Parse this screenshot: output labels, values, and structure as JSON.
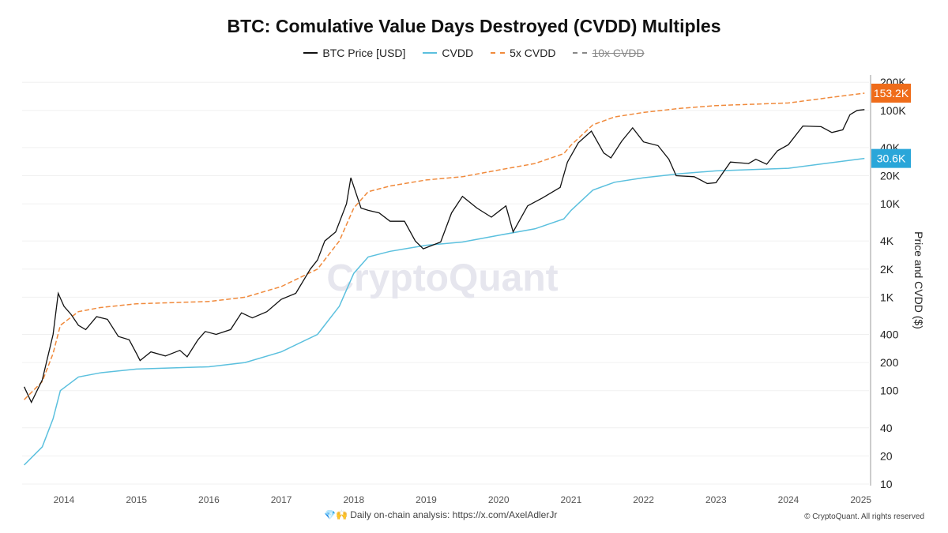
{
  "title": "BTC: Comulative Value Days Destroyed (CVDD) Multiples",
  "watermark": "CryptoQuant",
  "footer": {
    "icons": "💎🙌",
    "text": "Daily on-chain analysis: ",
    "link": "https://x.com/AxelAdlerJr",
    "copyright": "© CryptoQuant. All rights reserved"
  },
  "chart_data": {
    "type": "line",
    "title": "BTC: Comulative Value Days Destroyed (CVDD) Multiples",
    "ylabel": "Price and CVDD ($)",
    "yscale": "log",
    "ylim": [
      10,
      200000
    ],
    "y_ticks": [
      "10",
      "20",
      "40",
      "100",
      "200",
      "400",
      "1K",
      "2K",
      "4K",
      "10K",
      "20K",
      "40K",
      "100K",
      "200K"
    ],
    "y_tick_values": [
      10,
      20,
      40,
      100,
      200,
      400,
      1000,
      2000,
      4000,
      10000,
      20000,
      40000,
      100000,
      200000
    ],
    "x_ticks": [
      "2014",
      "2015",
      "2016",
      "2017",
      "2018",
      "2019",
      "2020",
      "2021",
      "2022",
      "2023",
      "2024",
      "2025"
    ],
    "legend_placement": "top",
    "grid": true,
    "series": [
      {
        "name": "BTC Price [USD]",
        "color": "#111111",
        "style": "solid",
        "x": [
          2013.45,
          2013.55,
          2013.7,
          2013.85,
          2013.92,
          2014.0,
          2014.1,
          2014.2,
          2014.3,
          2014.45,
          2014.6,
          2014.75,
          2014.9,
          2015.0,
          2015.05,
          2015.2,
          2015.4,
          2015.6,
          2015.7,
          2015.85,
          2015.95,
          2016.1,
          2016.3,
          2016.45,
          2016.6,
          2016.8,
          2017.0,
          2017.2,
          2017.4,
          2017.5,
          2017.6,
          2017.75,
          2017.9,
          2017.96,
          2018.1,
          2018.2,
          2018.35,
          2018.5,
          2018.7,
          2018.85,
          2018.96,
          2019.2,
          2019.35,
          2019.5,
          2019.7,
          2019.9,
          2020.1,
          2020.2,
          2020.4,
          2020.6,
          2020.85,
          2020.95,
          2021.1,
          2021.28,
          2021.45,
          2021.55,
          2021.7,
          2021.85,
          2022.0,
          2022.2,
          2022.35,
          2022.45,
          2022.7,
          2022.88,
          2023.0,
          2023.2,
          2023.45,
          2023.55,
          2023.7,
          2023.85,
          2024.0,
          2024.2,
          2024.45,
          2024.6,
          2024.75,
          2024.85,
          2024.95,
          2025.05
        ],
        "values": [
          110,
          75,
          130,
          400,
          1100,
          800,
          650,
          500,
          450,
          620,
          580,
          380,
          350,
          250,
          210,
          260,
          235,
          270,
          230,
          350,
          430,
          400,
          450,
          680,
          600,
          700,
          950,
          1100,
          2000,
          2500,
          4000,
          5000,
          10000,
          19000,
          9000,
          8500,
          8000,
          6500,
          6500,
          4000,
          3300,
          3900,
          8000,
          12000,
          9000,
          7200,
          9500,
          5000,
          9500,
          11500,
          15000,
          28000,
          45000,
          60000,
          35000,
          31000,
          47000,
          65000,
          46000,
          42000,
          30000,
          20000,
          19500,
          16500,
          16800,
          28000,
          27000,
          30000,
          26500,
          37000,
          43000,
          68000,
          67000,
          58000,
          62000,
          90000,
          100000,
          102000
        ]
      },
      {
        "name": "CVDD",
        "color": "#5bc0de",
        "style": "solid",
        "x": [
          2013.45,
          2013.7,
          2013.85,
          2013.95,
          2014.2,
          2014.5,
          2015.0,
          2016.0,
          2016.5,
          2017.0,
          2017.5,
          2017.8,
          2018.0,
          2018.2,
          2018.5,
          2019.0,
          2019.5,
          2020.0,
          2020.5,
          2020.9,
          2021.0,
          2021.3,
          2021.6,
          2022.0,
          2022.5,
          2023.0,
          2024.0,
          2024.5,
          2025.05
        ],
        "values": [
          16,
          25,
          50,
          100,
          140,
          155,
          170,
          180,
          200,
          260,
          400,
          800,
          1800,
          2700,
          3100,
          3600,
          3900,
          4600,
          5400,
          6900,
          8500,
          14000,
          17000,
          19000,
          21000,
          22500,
          24000,
          27000,
          30600
        ],
        "last_label": "30.6K",
        "label_color": "#2aa6d9"
      },
      {
        "name": "5x CVDD",
        "color": "#f08a3c",
        "style": "dashed",
        "multiplier": 5,
        "last_label": "153.2K",
        "label_color": "#ef6c1a"
      },
      {
        "name": "10x CVDD",
        "color": "#888888",
        "style": "dashed",
        "hidden": true
      }
    ]
  }
}
